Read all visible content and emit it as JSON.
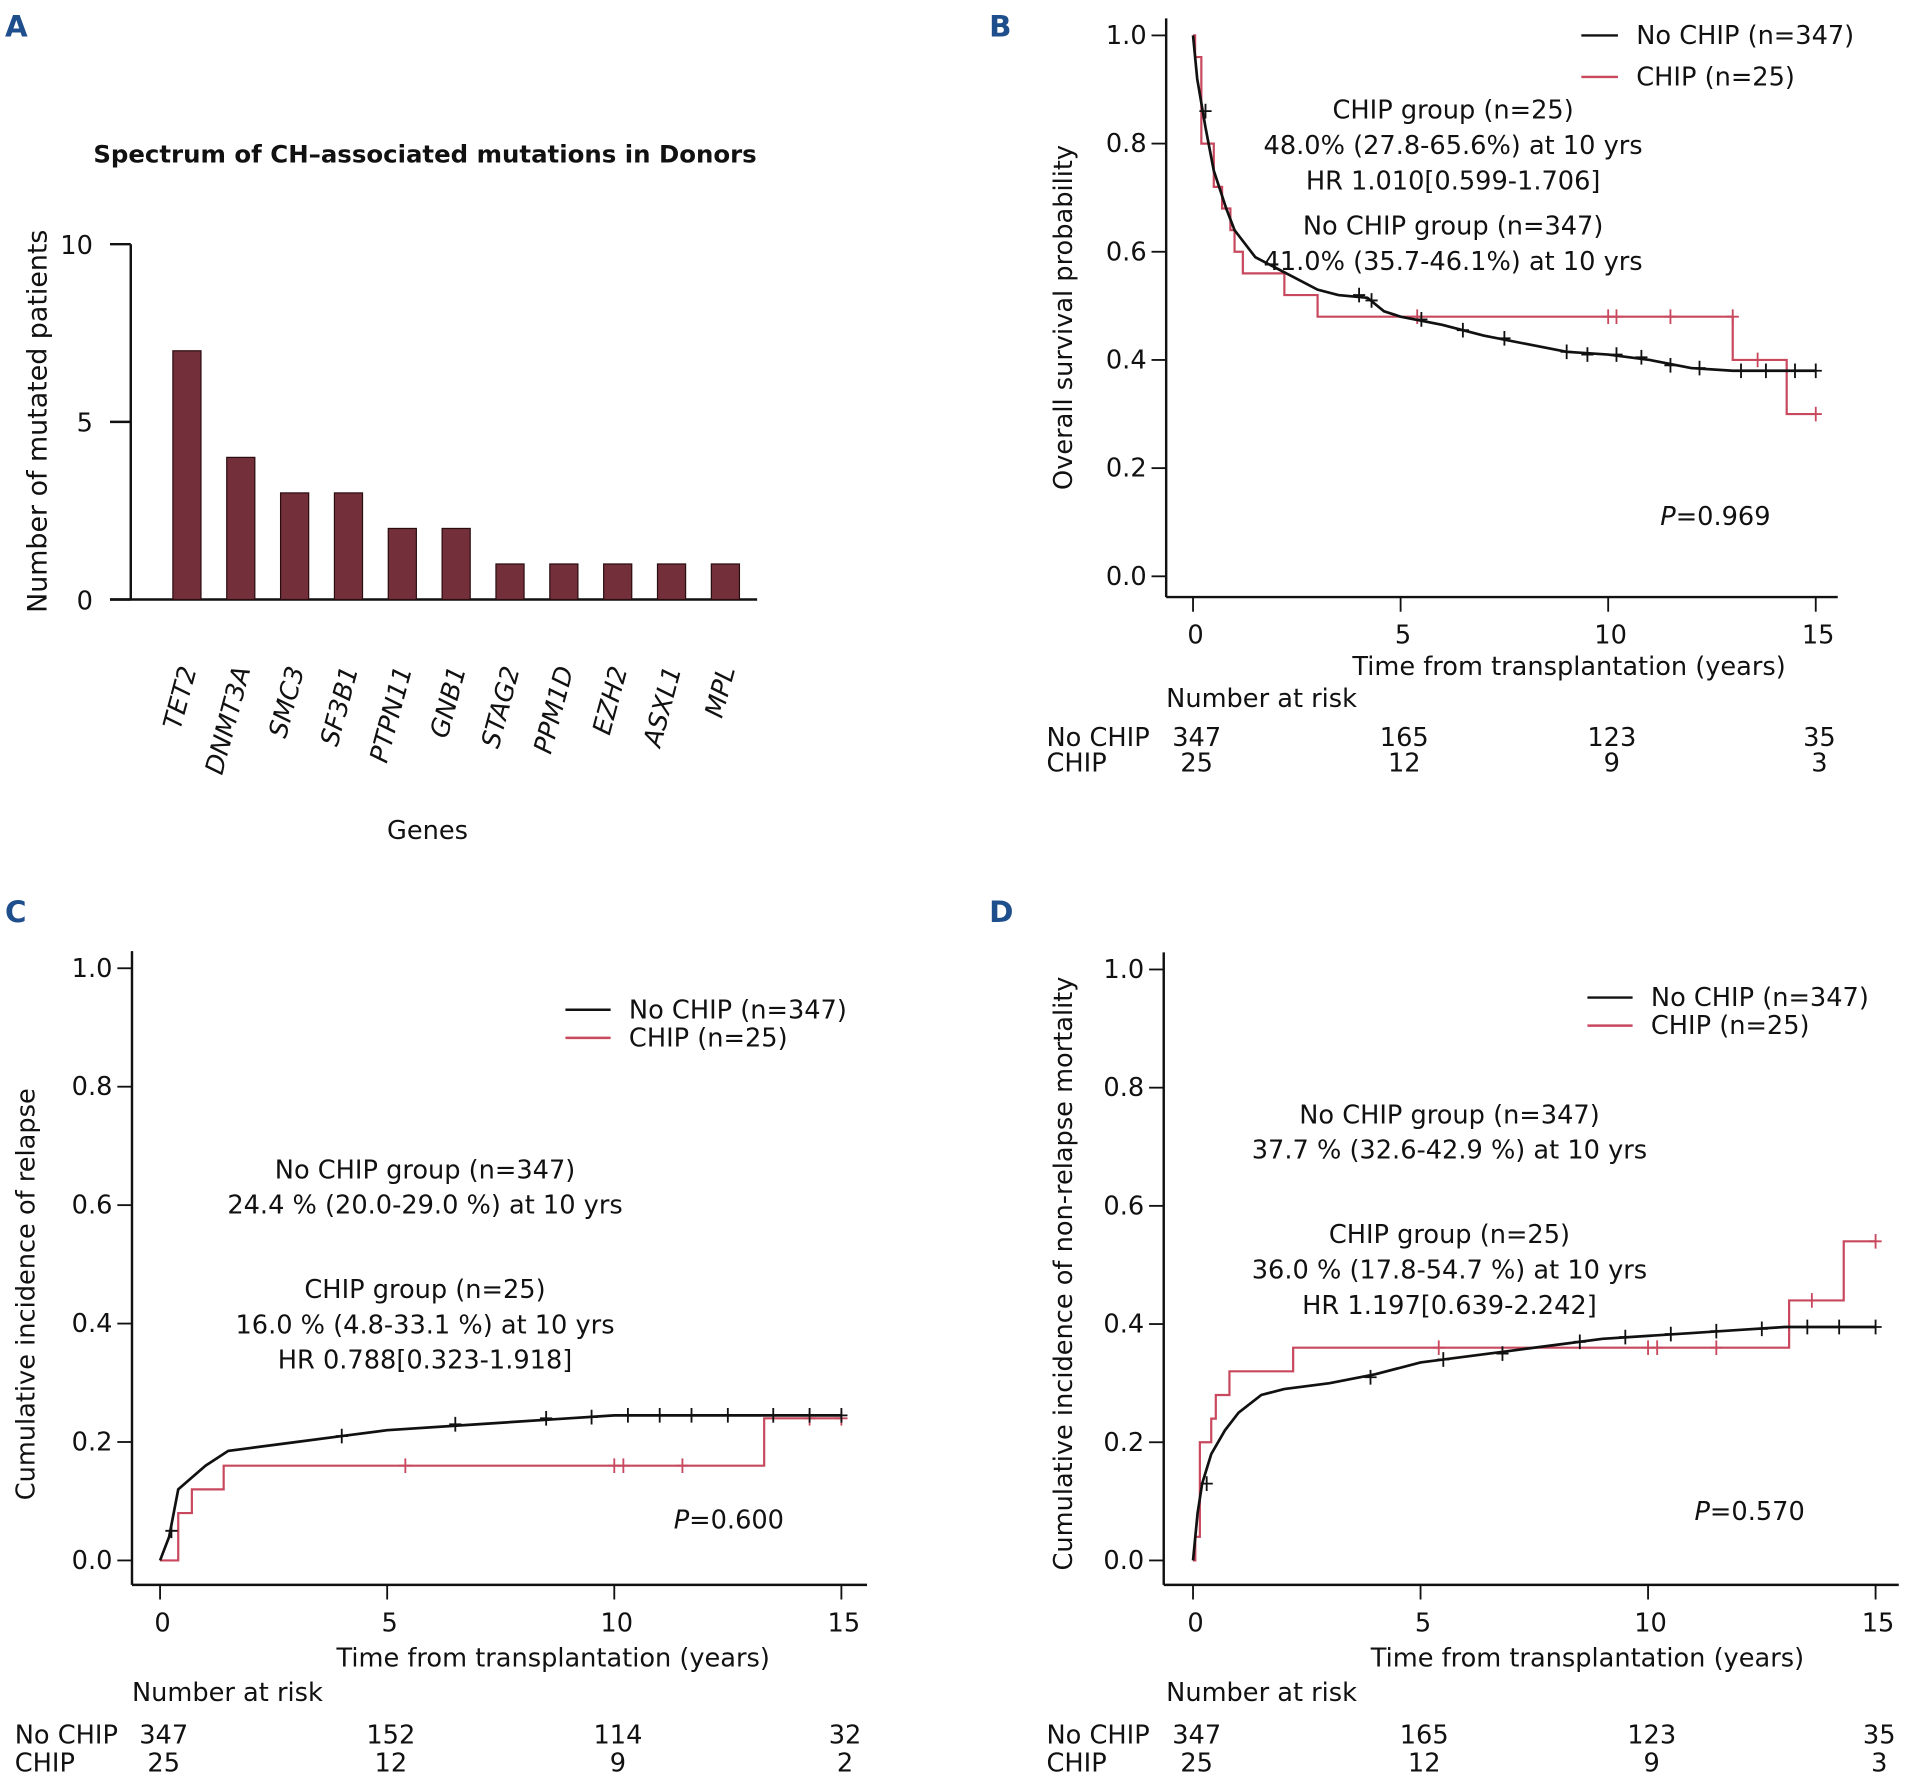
{
  "colors": {
    "bar": "#74303a",
    "chip": "#c8485e",
    "no_chip": "#111111",
    "panel_letter": "#1f4e8c"
  },
  "chart_data": [
    {
      "panel": "A",
      "type": "bar",
      "title": "Spectrum of CH–associated mutations in Donors",
      "xlabel": "Genes",
      "ylabel": "Number of mutated patients",
      "categories": [
        "TET2",
        "DNMT3A",
        "SMC3",
        "SF3B1",
        "PTPN11",
        "GNB1",
        "STAG2",
        "PPM1D",
        "EZH2",
        "ASXL1",
        "MPL"
      ],
      "values": [
        7,
        4,
        3,
        3,
        2,
        2,
        1,
        1,
        1,
        1,
        1
      ],
      "ylim": [
        0,
        10
      ],
      "yticks": [
        "0",
        "5",
        "10"
      ]
    },
    {
      "panel": "B",
      "type": "line",
      "xlabel": "Time from transplantation (years)",
      "ylabel": "Overall survival probability",
      "xlim": [
        0,
        15
      ],
      "ylim": [
        0,
        1
      ],
      "xticks": [
        "0",
        "5",
        "10",
        "15"
      ],
      "yticks": [
        "0.0",
        "0.2",
        "0.4",
        "0.6",
        "0.8",
        "1.0"
      ],
      "legend": [
        "No CHIP (n=347)",
        "CHIP (n=25)"
      ],
      "annotations": {
        "chip": [
          "CHIP group (n=25)",
          "48.0% (27.8-65.6%) at 10 yrs",
          "HR 1.010[0.599-1.706]"
        ],
        "no_chip": [
          "No CHIP group (n=347)",
          "41.0% (35.7-46.1%) at 10 yrs"
        ],
        "p_label": "P",
        "p_value": "=0.969"
      },
      "series": [
        {
          "name": "No CHIP (n=347)",
          "points": [
            [
              0,
              1.0
            ],
            [
              0.1,
              0.92
            ],
            [
              0.3,
              0.83
            ],
            [
              0.5,
              0.75
            ],
            [
              0.8,
              0.68
            ],
            [
              1.0,
              0.64
            ],
            [
              1.5,
              0.59
            ],
            [
              2,
              0.57
            ],
            [
              2.5,
              0.55
            ],
            [
              3,
              0.53
            ],
            [
              3.5,
              0.52
            ],
            [
              4.2,
              0.515
            ],
            [
              4.6,
              0.49
            ],
            [
              5,
              0.48
            ],
            [
              6,
              0.465
            ],
            [
              7,
              0.445
            ],
            [
              8,
              0.43
            ],
            [
              9,
              0.415
            ],
            [
              10,
              0.41
            ],
            [
              11,
              0.4
            ],
            [
              12,
              0.385
            ],
            [
              13,
              0.38
            ],
            [
              15,
              0.38
            ]
          ],
          "step": false,
          "censor": [
            [
              0.3,
              0.86
            ],
            [
              4,
              0.52
            ],
            [
              4.3,
              0.51
            ],
            [
              5.5,
              0.475
            ],
            [
              6.5,
              0.455
            ],
            [
              7.5,
              0.44
            ],
            [
              9,
              0.415
            ],
            [
              9.5,
              0.41
            ],
            [
              10.2,
              0.41
            ],
            [
              10.8,
              0.405
            ],
            [
              11.5,
              0.39
            ],
            [
              12.2,
              0.385
            ],
            [
              13.2,
              0.38
            ],
            [
              13.8,
              0.38
            ],
            [
              14.5,
              0.38
            ],
            [
              15,
              0.38
            ]
          ]
        },
        {
          "name": "CHIP (n=25)",
          "points": [
            [
              0,
              1.0
            ],
            [
              0.05,
              0.96
            ],
            [
              0.2,
              0.8
            ],
            [
              0.5,
              0.72
            ],
            [
              0.7,
              0.68
            ],
            [
              0.9,
              0.64
            ],
            [
              1.0,
              0.6
            ],
            [
              1.2,
              0.56
            ],
            [
              2.2,
              0.52
            ],
            [
              3.0,
              0.48
            ],
            [
              13.0,
              0.4
            ],
            [
              14.3,
              0.3
            ],
            [
              15,
              0.3
            ]
          ],
          "step": true,
          "censor": [
            [
              5.4,
              0.48
            ],
            [
              10,
              0.48
            ],
            [
              10.2,
              0.48
            ],
            [
              11.5,
              0.48
            ],
            [
              13,
              0.48
            ],
            [
              13.6,
              0.4
            ],
            [
              15,
              0.3
            ]
          ]
        }
      ],
      "risk_table": {
        "title": "Number at risk",
        "rows": [
          {
            "label": "No CHIP",
            "values": [
              "347",
              "165",
              "123",
              "35"
            ]
          },
          {
            "label": "CHIP",
            "values": [
              "25",
              "12",
              "9",
              "3"
            ]
          }
        ]
      }
    },
    {
      "panel": "C",
      "type": "line",
      "xlabel": "Time from transplantation (years)",
      "ylabel": "Cumulative incidence of relapse",
      "xlim": [
        0,
        15
      ],
      "ylim": [
        0,
        1
      ],
      "xticks": [
        "0",
        "5",
        "10",
        "15"
      ],
      "yticks": [
        "0.0",
        "0.2",
        "0.4",
        "0.6",
        "0.8",
        "1.0"
      ],
      "legend": [
        "No CHIP (n=347)",
        "CHIP (n=25)"
      ],
      "annotations": {
        "no_chip": [
          "No CHIP group (n=347)",
          "24.4 % (20.0-29.0 %) at 10 yrs"
        ],
        "chip": [
          "CHIP group (n=25)",
          "16.0 % (4.8-33.1 %) at 10 yrs",
          "HR 0.788[0.323-1.918]"
        ],
        "p_label": "P",
        "p_value": "=0.600"
      },
      "series": [
        {
          "name": "No CHIP (n=347)",
          "points": [
            [
              0,
              0
            ],
            [
              0.2,
              0.04
            ],
            [
              0.4,
              0.12
            ],
            [
              0.7,
              0.14
            ],
            [
              1,
              0.16
            ],
            [
              1.5,
              0.185
            ],
            [
              2,
              0.19
            ],
            [
              3,
              0.2
            ],
            [
              4,
              0.21
            ],
            [
              5,
              0.22
            ],
            [
              7,
              0.23
            ],
            [
              9,
              0.24
            ],
            [
              10,
              0.245
            ],
            [
              15,
              0.245
            ]
          ],
          "step": false,
          "censor": [
            [
              0.25,
              0.05
            ],
            [
              4,
              0.21
            ],
            [
              6.5,
              0.23
            ],
            [
              8.5,
              0.24
            ],
            [
              9.5,
              0.242
            ],
            [
              10.3,
              0.245
            ],
            [
              11,
              0.245
            ],
            [
              11.7,
              0.245
            ],
            [
              12.5,
              0.245
            ],
            [
              13.5,
              0.245
            ],
            [
              14.3,
              0.245
            ],
            [
              15,
              0.245
            ]
          ]
        },
        {
          "name": "CHIP (n=25)",
          "points": [
            [
              0,
              0
            ],
            [
              0.4,
              0.08
            ],
            [
              0.7,
              0.12
            ],
            [
              1.4,
              0.16
            ],
            [
              13.3,
              0.24
            ],
            [
              15,
              0.24
            ]
          ],
          "step": true,
          "censor": [
            [
              5.4,
              0.16
            ],
            [
              10,
              0.16
            ],
            [
              10.2,
              0.16
            ],
            [
              11.5,
              0.16
            ],
            [
              14.3,
              0.24
            ],
            [
              15,
              0.24
            ]
          ]
        }
      ],
      "risk_table": {
        "title": "Number at risk",
        "rows": [
          {
            "label": "No CHIP",
            "values": [
              "347",
              "152",
              "114",
              "32"
            ]
          },
          {
            "label": "CHIP",
            "values": [
              "25",
              "12",
              "9",
              "2"
            ]
          }
        ]
      }
    },
    {
      "panel": "D",
      "type": "line",
      "xlabel": "Time from transplantation (years)",
      "ylabel": "Cumulative incidence of non-relapse mortality",
      "xlim": [
        0,
        15
      ],
      "ylim": [
        0,
        1
      ],
      "xticks": [
        "0",
        "5",
        "10",
        "15"
      ],
      "yticks": [
        "0.0",
        "0.2",
        "0.4",
        "0.6",
        "0.8",
        "1.0"
      ],
      "legend": [
        "No CHIP (n=347)",
        "CHIP (n=25)"
      ],
      "annotations": {
        "no_chip": [
          "No CHIP group (n=347)",
          "37.7 % (32.6-42.9 %) at 10 yrs"
        ],
        "chip": [
          "CHIP group (n=25)",
          "36.0 % (17.8-54.7 %) at 10 yrs",
          "HR 1.197[0.639-2.242]"
        ],
        "p_label": "P",
        "p_value": "=0.570"
      },
      "series": [
        {
          "name": "No CHIP (n=347)",
          "points": [
            [
              0,
              0
            ],
            [
              0.1,
              0.08
            ],
            [
              0.2,
              0.13
            ],
            [
              0.4,
              0.18
            ],
            [
              0.7,
              0.22
            ],
            [
              1,
              0.25
            ],
            [
              1.5,
              0.28
            ],
            [
              2,
              0.29
            ],
            [
              3,
              0.3
            ],
            [
              4,
              0.315
            ],
            [
              5,
              0.335
            ],
            [
              6,
              0.345
            ],
            [
              7,
              0.355
            ],
            [
              8,
              0.365
            ],
            [
              9,
              0.375
            ],
            [
              10,
              0.38
            ],
            [
              11,
              0.385
            ],
            [
              12,
              0.39
            ],
            [
              13,
              0.395
            ],
            [
              15,
              0.395
            ]
          ],
          "step": false,
          "censor": [
            [
              0.3,
              0.13
            ],
            [
              3.9,
              0.31
            ],
            [
              5.5,
              0.34
            ],
            [
              6.8,
              0.35
            ],
            [
              8.5,
              0.37
            ],
            [
              9.5,
              0.378
            ],
            [
              10.5,
              0.383
            ],
            [
              11.5,
              0.388
            ],
            [
              12.5,
              0.392
            ],
            [
              13.5,
              0.395
            ],
            [
              14.2,
              0.395
            ],
            [
              15,
              0.395
            ]
          ]
        },
        {
          "name": "CHIP (n=25)",
          "points": [
            [
              0,
              0
            ],
            [
              0.05,
              0.04
            ],
            [
              0.15,
              0.2
            ],
            [
              0.4,
              0.24
            ],
            [
              0.5,
              0.28
            ],
            [
              0.8,
              0.32
            ],
            [
              2.2,
              0.36
            ],
            [
              13.1,
              0.44
            ],
            [
              14.3,
              0.54
            ],
            [
              15,
              0.54
            ]
          ],
          "step": true,
          "censor": [
            [
              5.4,
              0.36
            ],
            [
              10,
              0.36
            ],
            [
              10.2,
              0.36
            ],
            [
              11.5,
              0.36
            ],
            [
              13.6,
              0.44
            ],
            [
              15,
              0.54
            ]
          ]
        }
      ],
      "risk_table": {
        "title": "Number at risk",
        "rows": [
          {
            "label": "No CHIP",
            "values": [
              "347",
              "165",
              "123",
              "35"
            ]
          },
          {
            "label": "CHIP",
            "values": [
              "25",
              "12",
              "9",
              "3"
            ]
          }
        ]
      }
    }
  ]
}
